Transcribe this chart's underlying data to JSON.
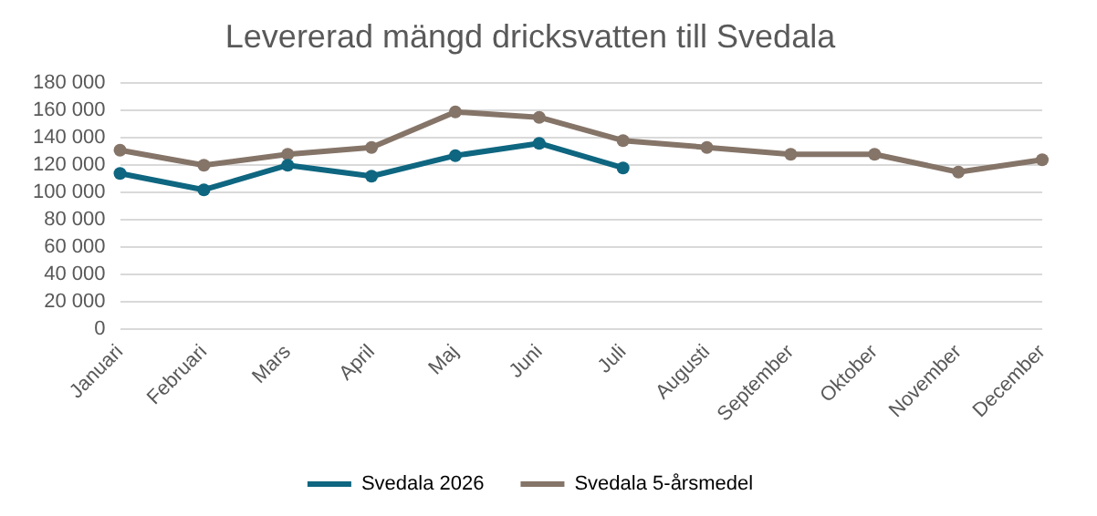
{
  "chart_data": {
    "type": "line",
    "title": "Levererad mängd dricksvatten till Svedala",
    "categories": [
      "Januari",
      "Februari",
      "Mars",
      "April",
      "Maj",
      "Juni",
      "Juli",
      "Augusti",
      "September",
      "Oktober",
      "November",
      "December"
    ],
    "series": [
      {
        "name": "Svedala 2026",
        "color": "#0e6680",
        "values": [
          114000,
          102000,
          120000,
          112000,
          127000,
          136000,
          118000,
          null,
          null,
          null,
          null,
          null
        ]
      },
      {
        "name": "Svedala 5-årsmedel",
        "color": "#857468",
        "values": [
          131000,
          120000,
          128000,
          133000,
          159000,
          155000,
          138000,
          133000,
          128000,
          128000,
          115000,
          124000
        ]
      }
    ],
    "ylim": [
      0,
      180000
    ],
    "yticks": [
      {
        "value": 0,
        "label": "0"
      },
      {
        "value": 20000,
        "label": "20 000"
      },
      {
        "value": 40000,
        "label": "40 000"
      },
      {
        "value": 60000,
        "label": "60 000"
      },
      {
        "value": 80000,
        "label": "80 000"
      },
      {
        "value": 100000,
        "label": "100 000"
      },
      {
        "value": 120000,
        "label": "120 000"
      },
      {
        "value": 140000,
        "label": "140 000"
      },
      {
        "value": 160000,
        "label": "160 000"
      },
      {
        "value": 180000,
        "label": "180 000"
      }
    ],
    "grid": "y",
    "legend": "bottom",
    "marker": "circle",
    "line_style": "solid"
  }
}
